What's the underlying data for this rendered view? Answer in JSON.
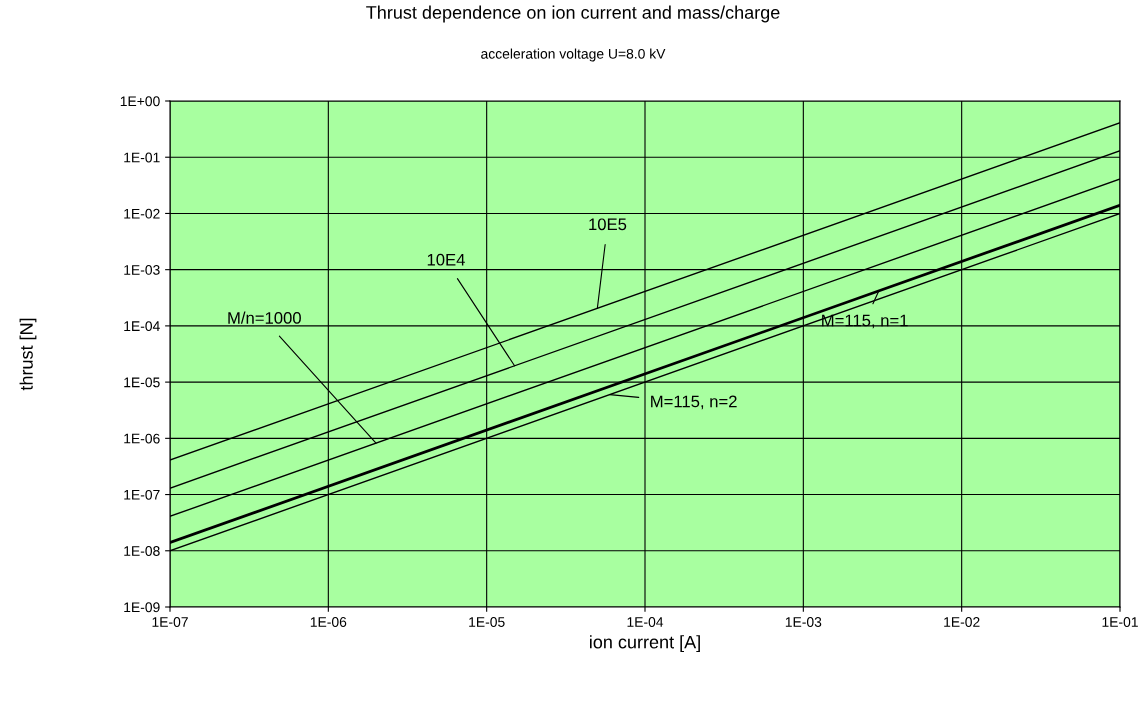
{
  "chart_data": {
    "type": "line",
    "title": "Thrust dependence on ion current and mass/charge",
    "subtitle": "acceleration voltage U=8.0 kV",
    "xlabel": "ion current [A]",
    "ylabel": "thrust [N]",
    "log": "xy",
    "grid": true,
    "marker": "none",
    "line_style": "solid",
    "x": [
      1e-07,
      0.1
    ],
    "series": [
      {
        "color": "#000000",
        "values": [
          4.1e-07,
          0.41
        ]
      },
      {
        "color": "#000000",
        "values": [
          1.3e-07,
          0.13
        ]
      },
      {
        "color": "#000000",
        "values": [
          4.1e-08,
          0.041
        ]
      },
      {
        "color": "#000000",
        "values": [
          1.4e-08,
          0.014
        ]
      },
      {
        "color": "#000000",
        "values": [
          1e-08,
          0.01
        ]
      }
    ],
    "annotations": [
      {
        "text": "10E5",
        "x": 5e-05,
        "y": 0.000205
      },
      {
        "text": "10E4",
        "x": 1.5e-05,
        "y": 1.95e-05
      },
      {
        "text": "M/n=1000",
        "x": 2e-06,
        "y": 8.2e-07
      },
      {
        "text": "M=115, n=1",
        "x": 0.003,
        "y": 0.00042
      },
      {
        "text": "M=115, n=2",
        "x": 6e-05,
        "y": 6e-06
      }
    ],
    "xlim": [
      1e-07,
      0.1
    ],
    "xticks": [
      {
        "value": 1e-07,
        "label": "1E-07"
      },
      {
        "value": 1e-06,
        "label": "1E-06"
      },
      {
        "value": 1e-05,
        "label": "1E-05"
      },
      {
        "value": 0.0001,
        "label": "1E-04"
      },
      {
        "value": 0.001,
        "label": "1E-03"
      },
      {
        "value": 0.01,
        "label": "1E-02"
      },
      {
        "value": 0.1,
        "label": "1E-01"
      }
    ],
    "ylim": [
      1e-09,
      1
    ],
    "yticks": [
      {
        "value": 1e-09,
        "label": "1E-09"
      },
      {
        "value": 1e-08,
        "label": "1E-08"
      },
      {
        "value": 1e-07,
        "label": "1E-07"
      },
      {
        "value": 1e-06,
        "label": "1E-06"
      },
      {
        "value": 1e-05,
        "label": "1E-05"
      },
      {
        "value": 0.0001,
        "label": "1E-04"
      },
      {
        "value": 0.001,
        "label": "1E-03"
      },
      {
        "value": 0.01,
        "label": "1E-02"
      },
      {
        "value": 0.1,
        "label": "1E-01"
      },
      {
        "value": 1,
        "label": "1E+00"
      }
    ]
  }
}
